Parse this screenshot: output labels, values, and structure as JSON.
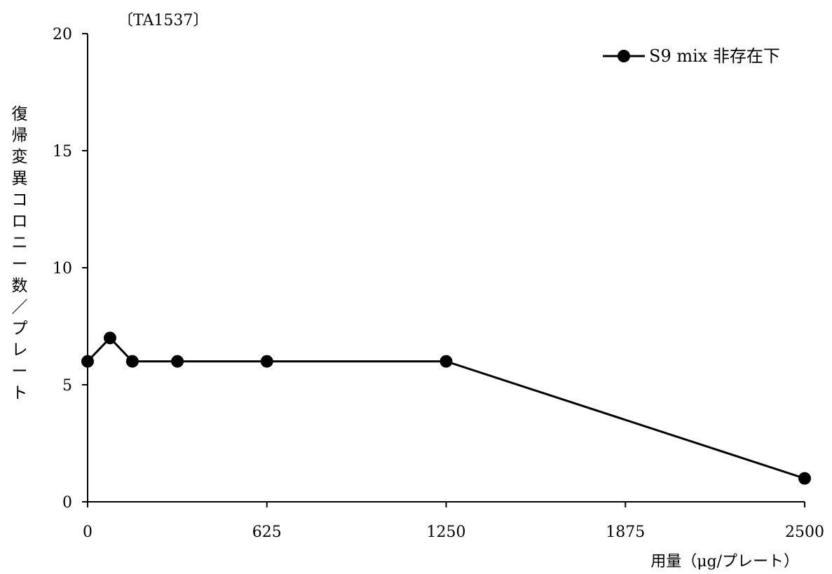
{
  "chart_data": {
    "type": "line",
    "title": "〔TA1537〕",
    "xlabel": "用量（μg/プレート）",
    "ylabel": "復帰変異コロニー数／プレート",
    "x_ticks": [
      "0",
      "625",
      "1250",
      "1875",
      "2500"
    ],
    "y_ticks": [
      "0",
      "5",
      "10",
      "15",
      "20"
    ],
    "xlim": [
      0,
      2500
    ],
    "ylim": [
      0,
      20
    ],
    "legend_position": "top-right",
    "grid": false,
    "series": [
      {
        "name": "S9 mix 非存在下",
        "color": "#000000",
        "marker": "filled-circle",
        "x": [
          0,
          78.1,
          156,
          313,
          625,
          1250,
          2500
        ],
        "y": [
          6,
          7,
          6,
          6,
          6,
          6,
          1
        ]
      }
    ]
  }
}
